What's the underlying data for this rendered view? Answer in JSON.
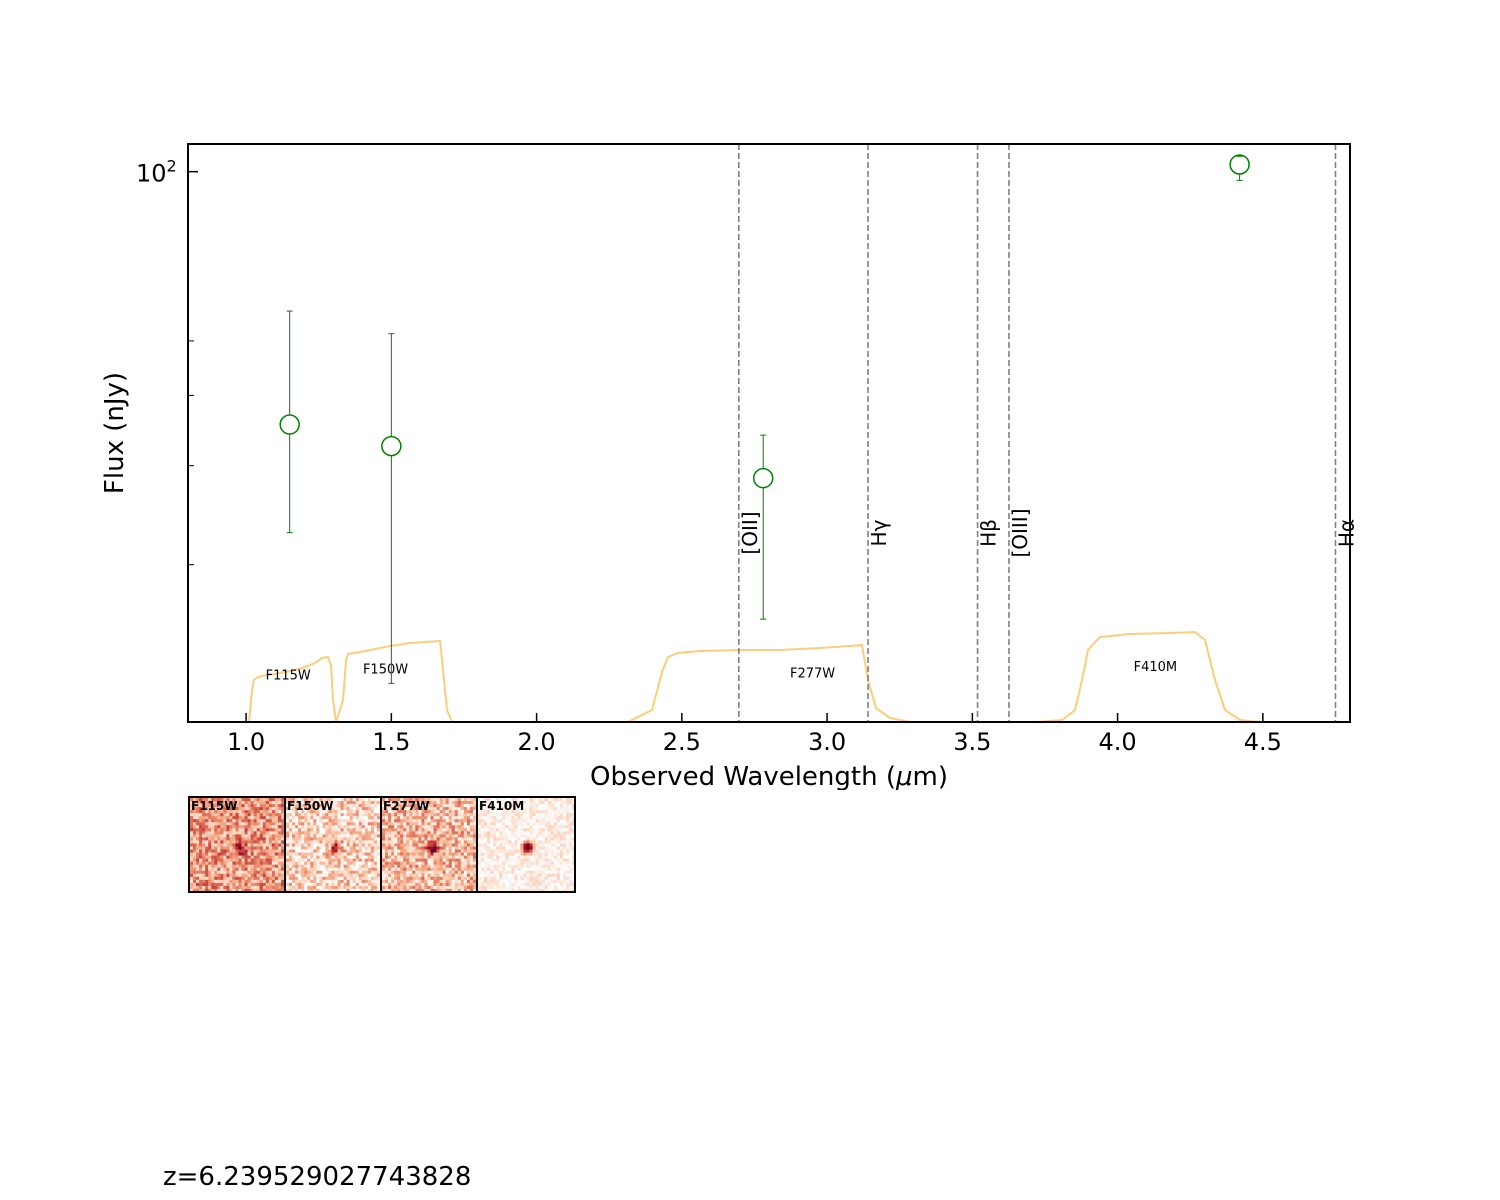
{
  "chart_data": {
    "type": "scatter",
    "xlabel": "Observed Wavelength (μm)",
    "ylabel": "Flux (nJy)",
    "xlim": [
      0.8,
      4.8
    ],
    "ylim": [
      10.5,
      112
    ],
    "yscale": "log",
    "x_ticks": [
      "1.0",
      "1.5",
      "2.0",
      "2.5",
      "3.0",
      "3.5",
      "4.0",
      "4.5"
    ],
    "y_tick_major": {
      "base": "10",
      "exponent": "2",
      "value": 100
    },
    "series": [
      {
        "marker": "open-circle",
        "color": "#008000",
        "points": [
          {
            "x": 1.15,
            "y": 35.5,
            "yerr_low": 22.8,
            "yerr_high": 56.5
          },
          {
            "x": 1.5,
            "y": 32.5,
            "yerr_low": 12.3,
            "yerr_high": 51.5
          },
          {
            "x": 2.78,
            "y": 28.5,
            "yerr_low": 16.0,
            "yerr_high": 34.0
          },
          {
            "x": 4.42,
            "y": 103.0,
            "yerr_low": 96.5,
            "yerr_high": 106.5
          }
        ]
      }
    ],
    "filters": [
      {
        "name": "F115W",
        "label_x": 1.145,
        "label_flux": 12.5
      },
      {
        "name": "F150W",
        "label_x": 1.48,
        "label_flux": 12.8
      },
      {
        "name": "F277W",
        "label_x": 2.95,
        "label_flux": 12.6
      },
      {
        "name": "F410M",
        "label_x": 4.13,
        "label_flux": 12.95
      }
    ],
    "filter_curve_color": "#fdcd7a",
    "emission_lines": [
      {
        "name": "[OII]",
        "x": 2.696
      },
      {
        "name": "Hγ",
        "x": 3.141
      },
      {
        "name": "Hβ",
        "x": 3.518
      },
      {
        "name": "[OIII]",
        "x": 3.626
      },
      {
        "name": "Hα",
        "x": 4.75
      }
    ],
    "emission_line_color": "#808080"
  },
  "cutouts": [
    {
      "label": "F115W",
      "style": "red",
      "intensity": 0.42,
      "source": 0.6
    },
    {
      "label": "F150W",
      "style": "red",
      "intensity": 0.22,
      "source": 0.6
    },
    {
      "label": "F277W",
      "style": "red",
      "intensity": 0.3,
      "source": 0.8
    },
    {
      "label": "F410M",
      "style": "diverging",
      "intensity": 0.08,
      "source": 1.0
    }
  ],
  "redshift_text": "z=6.239529027743828"
}
